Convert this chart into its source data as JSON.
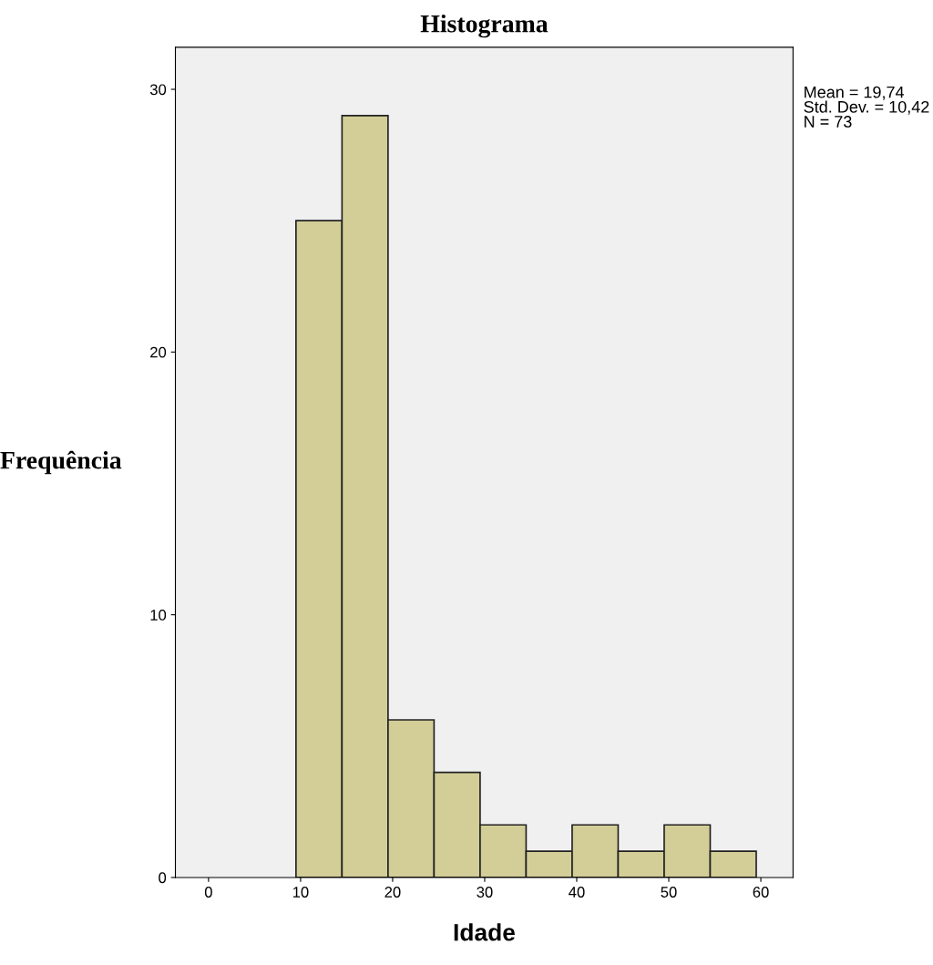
{
  "chart_data": {
    "type": "histogram",
    "title": "Histograma",
    "xlabel": "Idade",
    "ylabel": "Frequência",
    "bins": [
      9.5,
      14.5,
      19.5,
      24.5,
      29.5,
      34.5,
      39.5,
      44.5,
      49.5,
      54.5,
      59.5
    ],
    "values": [
      25,
      29,
      6,
      4,
      2,
      1,
      2,
      1,
      2,
      1
    ],
    "color": "#d3ce97",
    "xlim": [
      -3.6,
      63.5
    ],
    "xticks": [
      0,
      10,
      20,
      30,
      40,
      50,
      60
    ],
    "ylim": [
      0,
      31.6
    ],
    "yticks": [
      0,
      10,
      20,
      30
    ],
    "grid": false,
    "legend": false,
    "annotations": [
      "Mean = 19,74\nStd. Dev. = 10,42\nN = 73"
    ]
  }
}
